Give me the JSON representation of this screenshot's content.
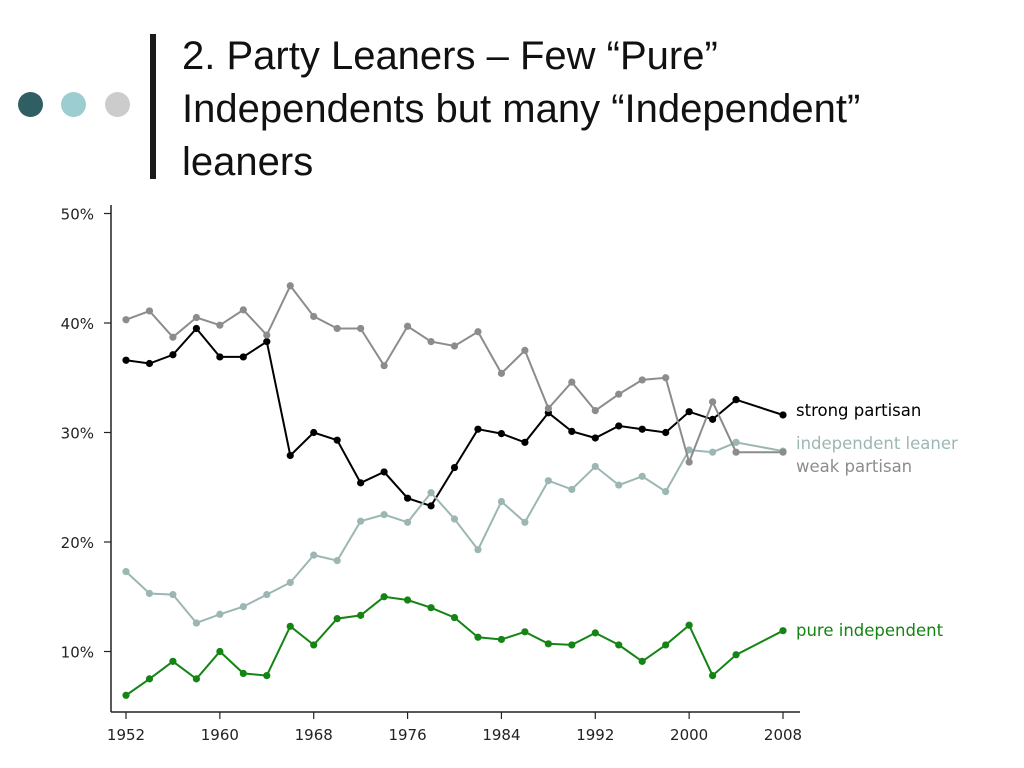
{
  "slide": {
    "title_lines": [
      "2. Party Leaners – Few “Pure”",
      "Independents but many “Independent”",
      "leaners"
    ],
    "dot_colors": [
      "#2f5f62",
      "#9ccdd0",
      "#cccccc"
    ]
  },
  "chart_data": {
    "type": "line",
    "x": [
      1952,
      1954,
      1956,
      1958,
      1960,
      1962,
      1964,
      1966,
      1968,
      1970,
      1972,
      1974,
      1976,
      1978,
      1980,
      1982,
      1984,
      1986,
      1988,
      1990,
      1992,
      1994,
      1996,
      1998,
      2000,
      2002,
      2004,
      2008
    ],
    "x_ticks": [
      "1952",
      "1960",
      "1968",
      "1976",
      "1984",
      "1992",
      "2000",
      "2008"
    ],
    "y_ticks": [
      "10%",
      "20%",
      "30%",
      "40%",
      "50%"
    ],
    "xlim": [
      1952,
      2008
    ],
    "ylim": [
      5,
      50
    ],
    "grid": false,
    "legend": "labels at right end of each line",
    "series": [
      {
        "name": "strong partisan",
        "color": "#000000",
        "values": [
          36.6,
          36.3,
          37.1,
          39.5,
          36.9,
          36.9,
          38.3,
          27.9,
          30.0,
          29.3,
          25.4,
          26.4,
          24.0,
          23.3,
          26.8,
          30.3,
          29.9,
          29.1,
          31.8,
          30.1,
          29.5,
          30.6,
          30.3,
          30.0,
          31.9,
          31.2,
          33.0,
          31.6
        ]
      },
      {
        "name": "independent leaner",
        "color": "#9cb7b3",
        "values": [
          17.3,
          15.3,
          15.2,
          12.6,
          13.4,
          14.1,
          15.2,
          16.3,
          18.8,
          18.3,
          21.9,
          22.5,
          21.8,
          24.5,
          22.1,
          19.3,
          23.7,
          21.8,
          25.6,
          24.8,
          26.9,
          25.2,
          26.0,
          24.6,
          28.4,
          28.2,
          29.1,
          28.3
        ]
      },
      {
        "name": "weak partisan",
        "color": "#8c8c8c",
        "values": [
          40.3,
          41.1,
          38.7,
          40.5,
          39.8,
          41.2,
          38.9,
          43.4,
          40.6,
          39.5,
          39.5,
          36.1,
          39.7,
          38.3,
          37.9,
          39.2,
          35.4,
          37.5,
          32.2,
          34.6,
          32.0,
          33.5,
          34.8,
          35.0,
          27.3,
          32.8,
          28.2,
          28.2
        ]
      },
      {
        "name": "pure independent",
        "color": "#148414",
        "values": [
          6.0,
          7.5,
          9.1,
          7.5,
          10.0,
          8.0,
          7.8,
          12.3,
          10.6,
          13.0,
          13.3,
          15.0,
          14.7,
          14.0,
          13.1,
          11.3,
          11.1,
          11.8,
          10.7,
          10.6,
          11.7,
          10.6,
          9.1,
          10.6,
          12.4,
          7.8,
          9.7,
          11.9
        ]
      }
    ]
  }
}
